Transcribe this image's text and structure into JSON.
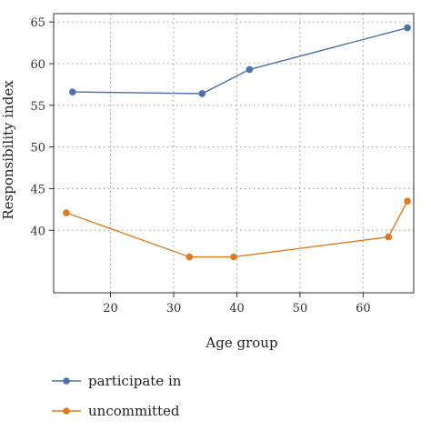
{
  "chart_data": {
    "type": "line",
    "xlabel": "Age group",
    "ylabel": "Responsibility index",
    "xlim": [
      11,
      68
    ],
    "ylim": [
      32.5,
      66
    ],
    "xticks": [
      20,
      30,
      40,
      50,
      60
    ],
    "yticks": [
      40,
      45,
      50,
      55,
      60,
      65
    ],
    "grid": true,
    "legend_position": "bottom-left",
    "series": [
      {
        "name": "participate in",
        "color": "#4a72b0",
        "x": [
          14,
          34.5,
          42,
          67
        ],
        "y": [
          56.6,
          56.4,
          59.3,
          64.3
        ]
      },
      {
        "name": "uncommitted",
        "color": "#e07b1f",
        "x": [
          13,
          32.5,
          39.5,
          64,
          67
        ],
        "y": [
          42.1,
          36.8,
          36.8,
          39.2,
          43.5
        ]
      }
    ]
  }
}
